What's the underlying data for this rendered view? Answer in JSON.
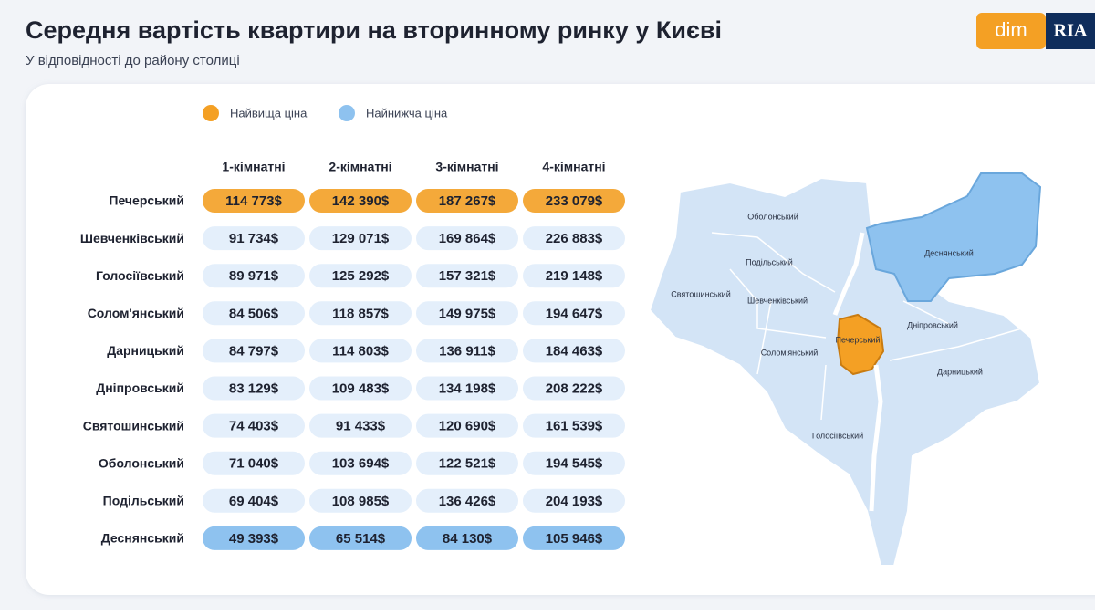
{
  "header": {
    "title": "Середня вартість квартири на вторинному ринку у Києві",
    "subtitle": "У відповідності до району столиці"
  },
  "logo": {
    "left": "dim",
    "right": "RIA"
  },
  "legend": [
    "Найвища ціна",
    "Найнижча ціна"
  ],
  "table": {
    "columns": [
      "1-кімнатні",
      "2-кімнатні",
      "3-кімнатні",
      "4-кімнатні"
    ],
    "rows": [
      {
        "district": "Печерський",
        "prices": [
          "114 773$",
          "142 390$",
          "187 267$",
          "233 079$"
        ]
      },
      {
        "district": "Шевченківський",
        "prices": [
          "91 734$",
          "129 071$",
          "169 864$",
          "226 883$"
        ]
      },
      {
        "district": "Голосіївський",
        "prices": [
          "89 971$",
          "125 292$",
          "157 321$",
          "219 148$"
        ]
      },
      {
        "district": "Солом'янський",
        "prices": [
          "84 506$",
          "118 857$",
          "149 975$",
          "194 647$"
        ]
      },
      {
        "district": "Дарницький",
        "prices": [
          "84 797$",
          "114 803$",
          "136 911$",
          "184 463$"
        ]
      },
      {
        "district": "Дніпровський",
        "prices": [
          "83 129$",
          "109 483$",
          "134 198$",
          "208 222$"
        ]
      },
      {
        "district": "Святошинський",
        "prices": [
          "74 403$",
          "91 433$",
          "120 690$",
          "161 539$"
        ]
      },
      {
        "district": "Оболонський",
        "prices": [
          "71 040$",
          "103 694$",
          "122 521$",
          "194 545$"
        ]
      },
      {
        "district": "Подільський",
        "prices": [
          "69 404$",
          "108 985$",
          "136 426$",
          "204 193$"
        ]
      },
      {
        "district": "Деснянський",
        "prices": [
          "49 393$",
          "65 514$",
          "84 130$",
          "105 946$"
        ]
      }
    ]
  },
  "map": {
    "labels": [
      "Оболонський",
      "Деснянський",
      "Подільський",
      "Святошинський",
      "Шевченківський",
      "Дніпровський",
      "Печерський",
      "Солом'янський",
      "Дарницький",
      "Голосіївський"
    ]
  }
}
